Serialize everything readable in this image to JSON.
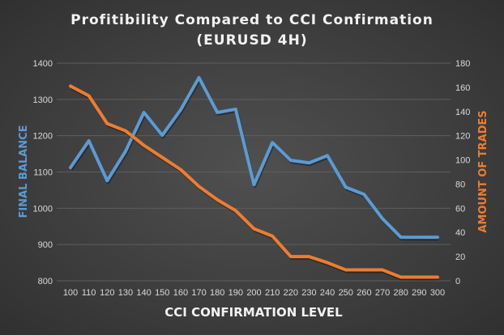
{
  "chart_data": {
    "type": "line",
    "title": [
      "Profitibility Compared to CCI Confirmation",
      "(EURUSD 4H)"
    ],
    "xlabel": "CCI CONFIRMATION LEVEL",
    "ylabel": "FINAL BALANCE",
    "y2label": "AMOUNT OF TRADES",
    "x": [
      100,
      110,
      120,
      130,
      140,
      150,
      160,
      170,
      180,
      190,
      200,
      210,
      220,
      230,
      240,
      250,
      260,
      270,
      280,
      290,
      300
    ],
    "ylim": [
      800,
      1400
    ],
    "yticks": [
      800,
      900,
      1000,
      1100,
      1200,
      1300,
      1400
    ],
    "y2lim": [
      0,
      180
    ],
    "y2ticks": [
      0,
      20,
      40,
      60,
      80,
      100,
      120,
      140,
      160,
      180
    ],
    "grid": true,
    "series": [
      {
        "axis": "left",
        "color": "#5b9bd5",
        "values": [
          1112,
          1186,
          1076,
          1157,
          1264,
          1201,
          1271,
          1360,
          1264,
          1273,
          1065,
          1181,
          1132,
          1125,
          1145,
          1058,
          1038,
          971,
          920,
          920,
          920
        ]
      },
      {
        "axis": "right",
        "color": "#ed7d31",
        "values": [
          161,
          153,
          130,
          124,
          112,
          102,
          92,
          78,
          67,
          58,
          43,
          37,
          20,
          20,
          15,
          9,
          9,
          9,
          3,
          3,
          3
        ]
      }
    ]
  }
}
